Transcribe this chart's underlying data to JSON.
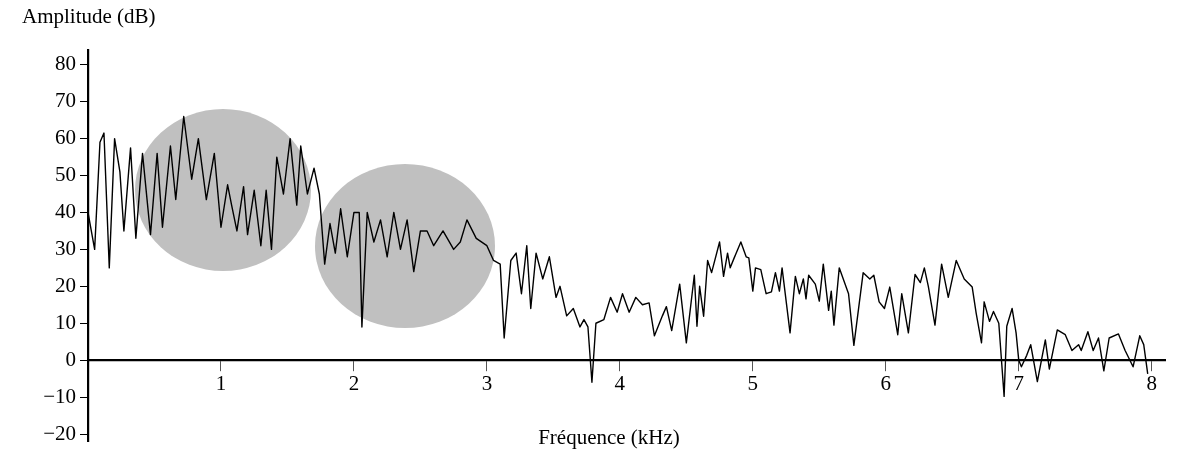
{
  "chart_data": {
    "type": "line",
    "xlabel": "Fréquence (kHz)",
    "ylabel": "Amplitude (dB)",
    "xlim": [
      0,
      8.1
    ],
    "ylim": [
      -22,
      84
    ],
    "xticks": [
      1,
      2,
      3,
      4,
      5,
      6,
      7,
      8
    ],
    "yticks": [
      {
        "value": -20,
        "label": "−20"
      },
      {
        "value": -10,
        "label": "−10"
      },
      0,
      10,
      20,
      30,
      40,
      50,
      60,
      70,
      80
    ],
    "grid": false,
    "marker": "none",
    "x": [
      0.0,
      0.05,
      0.09,
      0.12,
      0.16,
      0.2,
      0.24,
      0.27,
      0.32,
      0.36,
      0.41,
      0.47,
      0.52,
      0.56,
      0.62,
      0.66,
      0.72,
      0.78,
      0.83,
      0.89,
      0.95,
      1.0,
      1.05,
      1.08,
      1.12,
      1.17,
      1.2,
      1.25,
      1.3,
      1.34,
      1.38,
      1.42,
      1.47,
      1.52,
      1.57,
      1.6,
      1.65,
      1.7,
      1.74,
      1.78,
      1.82,
      1.86,
      1.9,
      1.95,
      2.0,
      2.04,
      2.06,
      2.1,
      2.15,
      2.2,
      2.25,
      2.3,
      2.35,
      2.4,
      2.45,
      2.5,
      2.55,
      2.6,
      2.67,
      2.75,
      2.8,
      2.85,
      2.92,
      3.0,
      3.05,
      3.1,
      3.13,
      3.18,
      3.22,
      3.26,
      3.3,
      3.33,
      3.37,
      3.42,
      3.47,
      3.52,
      3.55,
      3.6,
      3.65,
      3.7,
      3.73,
      3.76,
      3.79,
      3.82,
      3.88,
      3.93,
      3.98,
      4.02,
      4.07,
      4.12,
      4.17,
      4.22,
      4.26,
      4.32,
      4.35,
      4.39,
      4.45,
      4.5,
      4.56,
      4.58,
      4.6,
      4.63,
      4.66,
      4.69,
      4.75,
      4.78,
      4.81,
      4.83,
      4.86,
      4.91,
      4.95,
      4.97,
      5.0,
      5.02,
      5.06,
      5.1,
      5.14,
      5.17,
      5.2,
      5.22,
      5.28,
      5.32,
      5.35,
      5.38,
      5.4,
      5.42,
      5.47,
      5.5,
      5.53,
      5.57,
      5.59,
      5.61,
      5.65,
      5.72,
      5.76,
      5.83,
      5.88,
      5.91,
      5.95,
      5.99,
      6.03,
      6.09,
      6.12,
      6.17,
      6.22,
      6.26,
      6.29,
      6.32,
      6.37,
      6.42,
      6.47,
      6.53,
      6.59,
      6.65,
      6.68,
      6.72,
      6.74,
      6.78,
      6.81,
      6.85,
      6.89,
      6.91,
      6.95,
      6.98,
      7.0,
      7.02,
      7.06,
      7.09,
      7.14,
      7.2,
      7.23,
      7.29,
      7.35,
      7.4,
      7.45,
      7.47,
      7.52,
      7.56,
      7.6,
      7.64,
      7.68,
      7.75,
      7.8,
      7.86,
      7.91,
      7.94,
      7.97
    ],
    "series": [
      {
        "color": "#000000",
        "values": [
          40,
          30,
          59,
          61.5,
          25,
          60,
          51,
          35,
          57.5,
          33,
          56,
          34,
          56,
          36,
          58,
          43.5,
          66,
          49,
          60,
          43.5,
          56,
          36,
          47.5,
          42,
          35,
          47,
          34,
          46,
          31,
          46,
          30,
          55,
          45,
          60,
          42,
          58,
          45,
          52,
          45,
          26,
          37,
          29,
          41,
          28,
          40,
          40,
          9,
          40,
          32,
          38,
          28,
          40,
          30,
          38,
          24,
          35,
          35,
          31,
          35,
          30,
          32,
          38,
          33,
          31,
          27,
          26,
          6,
          27,
          29,
          18,
          31,
          14,
          29,
          22,
          28,
          17,
          20,
          12,
          14,
          9,
          11,
          9,
          -6,
          10,
          11,
          17,
          13,
          18,
          13,
          17,
          15,
          15.5,
          6.6,
          12,
          14.5,
          8,
          20.6,
          4.7,
          23,
          9.2,
          20,
          11.9,
          27,
          23.7,
          32,
          22.7,
          29,
          25,
          27.7,
          32,
          28,
          27.7,
          18.7,
          25,
          24.5,
          18,
          18.5,
          23.7,
          18.7,
          25,
          7.4,
          22.7,
          18,
          22,
          16.6,
          23,
          20.6,
          16,
          26,
          13.5,
          18.7,
          9.5,
          25,
          18,
          4,
          23.7,
          22,
          23,
          15.8,
          14,
          19.8,
          6.9,
          18,
          7.4,
          23.2,
          21,
          25,
          20,
          9.5,
          26,
          17,
          27,
          22,
          19.8,
          12.7,
          4.7,
          15.8,
          10.5,
          13.2,
          10,
          -9.8,
          9.2,
          14,
          7.4,
          0,
          -1.8,
          1.3,
          4.2,
          -5.8,
          5.5,
          -2.4,
          8.2,
          6.9,
          2.6,
          4.2,
          2.6,
          7.7,
          2.6,
          6,
          -2.9,
          6,
          7.1,
          2.6,
          -1.8,
          6.6,
          4.2,
          -3.7
        ]
      }
    ]
  }
}
